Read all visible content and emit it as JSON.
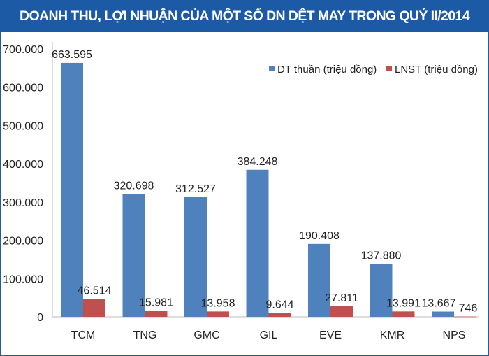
{
  "chart_data": {
    "type": "bar",
    "title": "DOANH THU, LỢI NHUẬN CỦA MỘT SỐ DN DỆT MAY TRONG QUÝ II/2014",
    "categories": [
      "TCM",
      "TNG",
      "GMC",
      "GIL",
      "EVE",
      "KMR",
      "NPS"
    ],
    "series": [
      {
        "name": "DT thuần (triệu đồng)",
        "color": "#4f81bd",
        "values": [
          663595,
          320698,
          312527,
          384248,
          190408,
          137880,
          13667
        ],
        "labels": [
          "663.595",
          "320.698",
          "312.527",
          "384.248",
          "190.408",
          "137.880",
          "13.667"
        ]
      },
      {
        "name": "LNST (triệu đồng)",
        "color": "#c0504d",
        "values": [
          46514,
          15981,
          13958,
          9644,
          27811,
          13991,
          746
        ],
        "labels": [
          "46.514",
          "15.981",
          "13.958",
          "9.644",
          "27.811",
          "13.991",
          "746"
        ]
      }
    ],
    "ylim": [
      0,
      700000
    ],
    "yticks": [
      0,
      100000,
      200000,
      300000,
      400000,
      500000,
      600000,
      700000
    ],
    "ytick_labels": [
      "0",
      "100.000",
      "200.000",
      "300.000",
      "400.000",
      "500.000",
      "600.000",
      "700.000"
    ],
    "grid": false,
    "legend": "top-right",
    "xlabel": "",
    "ylabel": ""
  },
  "colors": {
    "title_bar": "#1c5aa6"
  }
}
